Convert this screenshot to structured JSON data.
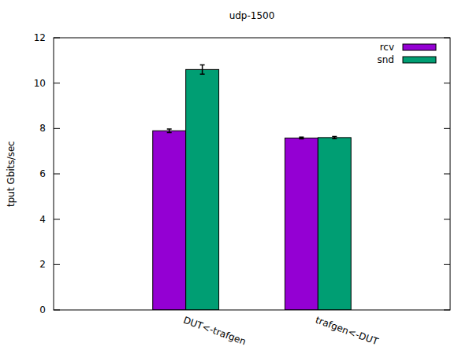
{
  "chart_data": {
    "type": "bar",
    "title": "udp-1500",
    "y_label": "tput Gbits/sec",
    "categories": [
      "DUT<-trafgen",
      "trafgen<-DUT"
    ],
    "series": [
      {
        "name": "rcv",
        "color": "#9400d3",
        "values": [
          7.9,
          7.58
        ],
        "errors": [
          0.08,
          0.04
        ]
      },
      {
        "name": "snd",
        "color": "#009e73",
        "values": [
          10.6,
          7.6
        ],
        "errors": [
          0.2,
          0.05
        ]
      }
    ],
    "ylim": [
      0,
      12
    ],
    "yticks": [
      0,
      2,
      4,
      6,
      8,
      10,
      12
    ],
    "grid": false,
    "legend": "top-right"
  }
}
